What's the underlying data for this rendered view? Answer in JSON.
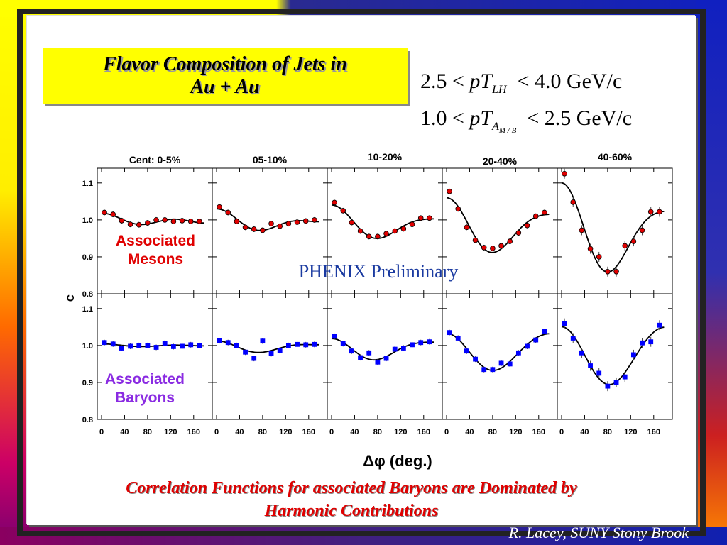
{
  "title": "Flavor Composition of Jets in\nAu + Au",
  "cuts": {
    "line1": {
      "low": "2.5",
      "var": "pT",
      "sub": "LH",
      "high": "4.0 GeV/c"
    },
    "line2": {
      "low": "1.0",
      "var": "pT",
      "sub": "A",
      "subsub": "M / B",
      "high": "2.5 GeV/c"
    },
    "lt": "<"
  },
  "watermark": "PHENIX Preliminary",
  "footer": {
    "conclusion": "Correlation Functions for associated Baryons are Dominated by\nHarmonic Contributions",
    "author": "R. Lacey, SUNY  Stony Brook"
  },
  "colors": {
    "mesons": "#e00000",
    "baryons": "#0000ff",
    "labelMesons": "#e00000",
    "labelBaryons": "#8a2be2"
  },
  "chart_data": {
    "type": "scatter",
    "xlabel": "Δφ (deg.)",
    "ylabel": "C",
    "xlim": [
      0,
      180
    ],
    "ylim": [
      0.8,
      1.14
    ],
    "xticks": [
      "0",
      "40",
      "80",
      "120",
      "160"
    ],
    "yticks": [
      "0.8",
      "0.9",
      "1.0",
      "1.1"
    ],
    "centralities": [
      "Cent: 0-5%",
      "05-10%",
      "10-20%",
      "20-40%",
      "40-60%"
    ],
    "rows": [
      "Associated\nMesons",
      "Associated\nBaryons"
    ],
    "x": [
      5,
      20,
      35,
      50,
      65,
      80,
      95,
      110,
      125,
      140,
      155,
      170
    ],
    "mesons": [
      [
        1.02,
        1.015,
        0.998,
        0.988,
        0.987,
        0.992,
        1.0,
        1.0,
        0.996,
        0.998,
        0.996,
        0.996
      ],
      [
        1.035,
        1.02,
        0.996,
        0.98,
        0.975,
        0.972,
        0.99,
        0.983,
        0.99,
        0.994,
        0.997,
        1.0
      ],
      [
        1.047,
        1.025,
        0.993,
        0.97,
        0.955,
        0.955,
        0.963,
        0.97,
        0.976,
        0.988,
        1.005,
        1.005
      ],
      [
        1.077,
        1.03,
        0.98,
        0.945,
        0.925,
        0.923,
        0.93,
        0.942,
        0.965,
        0.985,
        1.01,
        1.02
      ],
      [
        1.125,
        1.048,
        0.972,
        0.922,
        0.9,
        0.86,
        0.86,
        0.93,
        0.942,
        0.972,
        1.022,
        1.022
      ]
    ],
    "baryons": [
      [
        1.008,
        1.004,
        0.993,
        0.998,
        1.0,
        1.0,
        0.995,
        1.006,
        0.997,
        0.998,
        1.002,
        1.0
      ],
      [
        1.013,
        1.008,
        1.0,
        0.982,
        0.965,
        1.012,
        0.978,
        0.986,
        1.0,
        1.003,
        1.002,
        1.003
      ],
      [
        1.025,
        1.005,
        0.985,
        0.967,
        0.98,
        0.955,
        0.965,
        0.99,
        0.993,
        1.002,
        1.008,
        1.01
      ],
      [
        1.035,
        1.02,
        0.985,
        0.963,
        0.935,
        0.935,
        0.952,
        0.95,
        0.98,
        0.998,
        1.015,
        1.038
      ],
      [
        1.06,
        1.02,
        0.98,
        0.945,
        0.925,
        0.89,
        0.9,
        0.915,
        0.975,
        1.007,
        1.01,
        1.055
      ]
    ]
  }
}
